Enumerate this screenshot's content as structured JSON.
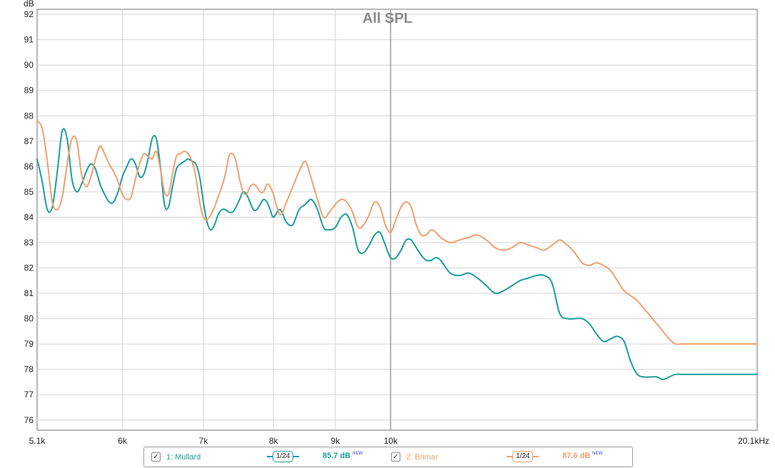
{
  "chart_data": {
    "type": "line",
    "title": "All SPL",
    "ylabel": "dB",
    "xscale": "log",
    "xlim": [
      5100,
      20100
    ],
    "ylim": [
      75.6,
      92.2
    ],
    "yticks": [
      76,
      77,
      78,
      79,
      80,
      81,
      82,
      83,
      84,
      85,
      86,
      87,
      88,
      89,
      90,
      91,
      92
    ],
    "xticks": [
      {
        "value": 5100,
        "label": "5.1k"
      },
      {
        "value": 6000,
        "label": "6k"
      },
      {
        "value": 7000,
        "label": "7k"
      },
      {
        "value": 8000,
        "label": "8k"
      },
      {
        "value": 9000,
        "label": "9k"
      },
      {
        "value": 10000,
        "label": "10k"
      },
      {
        "value": 20100,
        "label": "20.1kHz"
      }
    ],
    "grid": true,
    "series": [
      {
        "name": "1: Mullard",
        "color": "#1a9e9a",
        "x": [
          5100,
          5150,
          5200,
          5250,
          5300,
          5350,
          5400,
          5450,
          5500,
          5550,
          5600,
          5650,
          5700,
          5750,
          5800,
          5850,
          5900,
          5950,
          6000,
          6050,
          6100,
          6150,
          6200,
          6250,
          6300,
          6350,
          6400,
          6450,
          6500,
          6550,
          6600,
          6650,
          6700,
          6750,
          6800,
          6850,
          6900,
          6950,
          7000,
          7050,
          7100,
          7150,
          7200,
          7250,
          7300,
          7350,
          7400,
          7450,
          7500,
          7550,
          7600,
          7650,
          7700,
          7750,
          7800,
          7850,
          7900,
          7950,
          8000,
          8100,
          8200,
          8300,
          8400,
          8500,
          8600,
          8700,
          8800,
          8900,
          9000,
          9100,
          9200,
          9300,
          9400,
          9500,
          9600,
          9700,
          9800,
          9900,
          10000,
          10100,
          10200,
          10300,
          10400,
          10500,
          10600,
          10700,
          10800,
          10900,
          11000,
          11200,
          11400,
          11600,
          11800,
          12000,
          12200,
          12400,
          12600,
          12800,
          13000,
          13200,
          13400,
          13600,
          13800,
          14000,
          14200,
          14400,
          14600,
          14800,
          15000,
          15200,
          15400,
          15600,
          15800,
          16000,
          16200,
          16400,
          16600,
          16800,
          17000,
          17200,
          17400,
          17600,
          17800,
          18000,
          18200,
          18400,
          18600,
          18800,
          19000,
          19200,
          19400,
          19600,
          19800,
          20000,
          20100
        ],
        "y": [
          86.3,
          85.4,
          84.3,
          84.4,
          85.8,
          87.4,
          87.1,
          85.5,
          85.0,
          85.3,
          85.8,
          86.1,
          85.9,
          85.3,
          84.9,
          84.6,
          84.6,
          85.0,
          85.6,
          86.0,
          86.3,
          86.1,
          85.6,
          85.7,
          86.3,
          87.1,
          87.1,
          86.0,
          84.5,
          84.4,
          85.2,
          85.9,
          86.1,
          86.2,
          86.3,
          86.2,
          86.1,
          85.6,
          84.6,
          83.8,
          83.5,
          83.7,
          84.1,
          84.3,
          84.3,
          84.2,
          84.2,
          84.4,
          84.7,
          85.0,
          84.9,
          84.6,
          84.3,
          84.3,
          84.5,
          84.7,
          84.6,
          84.3,
          84.0,
          84.3,
          83.8,
          83.7,
          84.3,
          84.5,
          84.7,
          84.3,
          83.6,
          83.5,
          83.6,
          84.0,
          84.1,
          83.6,
          82.7,
          82.6,
          82.9,
          83.3,
          83.4,
          82.9,
          82.4,
          82.4,
          82.7,
          83.1,
          83.1,
          82.8,
          82.5,
          82.3,
          82.3,
          82.4,
          82.3,
          81.8,
          81.7,
          81.8,
          81.6,
          81.3,
          81.0,
          81.1,
          81.3,
          81.5,
          81.6,
          81.7,
          81.7,
          81.4,
          80.2,
          80.0,
          80.0,
          80.0,
          79.8,
          79.4,
          79.1,
          79.2,
          79.3,
          79.1,
          78.3,
          77.8,
          77.7,
          77.7,
          77.7,
          77.6,
          77.7,
          77.8,
          77.8,
          77.8,
          77.8,
          77.8,
          77.8,
          77.8,
          77.8,
          77.8,
          77.8,
          77.8,
          77.8,
          77.8,
          77.8,
          77.8,
          77.8
        ]
      },
      {
        "name": "2: Brimar",
        "color": "#f0a06e",
        "x": [
          5100,
          5150,
          5200,
          5250,
          5300,
          5350,
          5400,
          5450,
          5500,
          5550,
          5600,
          5650,
          5700,
          5750,
          5800,
          5850,
          5900,
          5950,
          6000,
          6050,
          6100,
          6150,
          6200,
          6250,
          6300,
          6350,
          6400,
          6450,
          6500,
          6550,
          6600,
          6650,
          6700,
          6750,
          6800,
          6850,
          6900,
          6950,
          7000,
          7050,
          7100,
          7150,
          7200,
          7250,
          7300,
          7350,
          7400,
          7450,
          7500,
          7550,
          7600,
          7650,
          7700,
          7750,
          7800,
          7850,
          7900,
          7950,
          8000,
          8100,
          8200,
          8300,
          8400,
          8500,
          8600,
          8700,
          8800,
          8900,
          9000,
          9100,
          9200,
          9300,
          9400,
          9500,
          9600,
          9700,
          9800,
          9900,
          10000,
          10100,
          10200,
          10300,
          10400,
          10500,
          10600,
          10700,
          10800,
          10900,
          11000,
          11200,
          11400,
          11600,
          11800,
          12000,
          12200,
          12400,
          12600,
          12800,
          13000,
          13200,
          13400,
          13600,
          13800,
          14000,
          14200,
          14400,
          14600,
          14800,
          15000,
          15200,
          15400,
          15600,
          15800,
          16000,
          16200,
          16400,
          16600,
          16800,
          17000,
          17200,
          17400,
          17600,
          17800,
          18000,
          18200,
          18400,
          18600,
          18800,
          19000,
          19200,
          19400,
          19600,
          19800,
          20000,
          20100
        ],
        "y": [
          87.8,
          87.5,
          86.2,
          84.6,
          84.3,
          84.8,
          86.1,
          87.1,
          87.0,
          85.7,
          85.2,
          85.6,
          86.3,
          86.8,
          86.5,
          86.1,
          85.8,
          85.4,
          84.9,
          84.7,
          84.8,
          85.5,
          86.1,
          86.5,
          86.4,
          86.3,
          86.6,
          85.9,
          85.0,
          84.9,
          85.7,
          86.4,
          86.5,
          86.6,
          86.5,
          86.2,
          85.6,
          84.6,
          84.0,
          83.9,
          84.1,
          84.4,
          84.8,
          85.2,
          85.7,
          86.4,
          86.5,
          86.2,
          85.5,
          85.0,
          84.9,
          85.2,
          85.3,
          85.2,
          85.0,
          85.0,
          85.3,
          85.2,
          84.9,
          84.1,
          84.6,
          85.2,
          85.8,
          86.2,
          85.5,
          84.7,
          84.0,
          84.2,
          84.5,
          84.7,
          84.6,
          84.2,
          83.6,
          83.7,
          84.1,
          84.6,
          84.4,
          83.7,
          83.4,
          83.9,
          84.4,
          84.6,
          84.4,
          83.7,
          83.3,
          83.3,
          83.5,
          83.4,
          83.2,
          83.0,
          83.1,
          83.2,
          83.3,
          83.1,
          82.8,
          82.7,
          82.8,
          83.0,
          82.9,
          82.8,
          82.7,
          82.9,
          83.1,
          82.9,
          82.6,
          82.2,
          82.1,
          82.2,
          82.1,
          81.9,
          81.5,
          81.1,
          80.9,
          80.7,
          80.4,
          80.1,
          79.8,
          79.5,
          79.2,
          79.0,
          79.0,
          79.0,
          79.0,
          79.0,
          79.0,
          79.0,
          79.0,
          79.0,
          79.0,
          79.0,
          79.0,
          79.0,
          79.0,
          79.0,
          79.0
        ]
      }
    ]
  },
  "legend": {
    "items": [
      {
        "label": "1: Mullard",
        "color": "#1a9e9a",
        "checked": "✓",
        "smoothing": "1/24",
        "level": "85.7 dB",
        "badge": "NEW"
      },
      {
        "label": "2: Brimar",
        "color": "#f0a06e",
        "checked": "✓",
        "smoothing": "1/24",
        "level": "87.6 dB",
        "badge": "NEW"
      }
    ]
  }
}
